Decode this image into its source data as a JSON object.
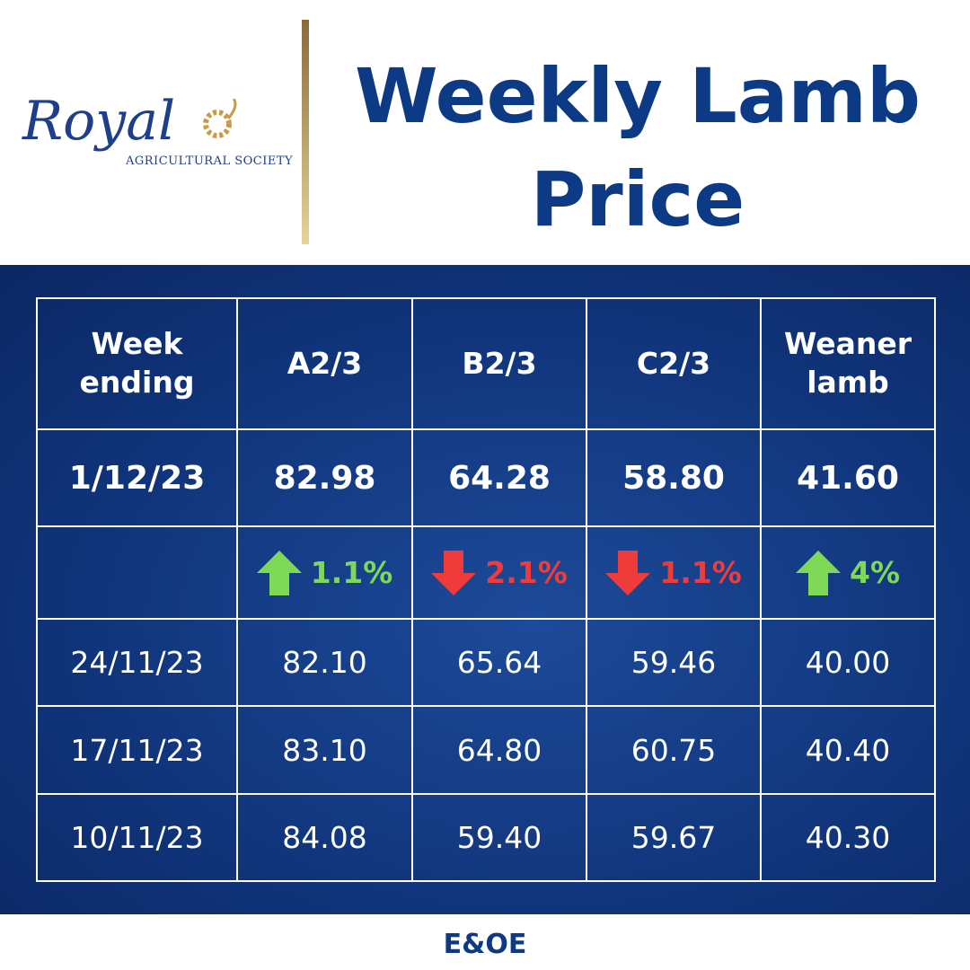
{
  "logo": {
    "name": "Royal",
    "subtitle": "AGRICULTURAL SOCIETY"
  },
  "header": {
    "title": "Weekly Lamb Price"
  },
  "table": {
    "columns": [
      "Week ending",
      "A2/3",
      "B2/3",
      "C2/3",
      "Weaner lamb"
    ],
    "latest": [
      "1/12/23",
      "82.98",
      "64.28",
      "58.80",
      "41.60"
    ],
    "changes": [
      {
        "direction": "up",
        "label": "1.1%"
      },
      {
        "direction": "down",
        "label": "2.1%"
      },
      {
        "direction": "down",
        "label": "1.1%"
      },
      {
        "direction": "up",
        "label": "4%"
      }
    ],
    "rows": [
      [
        "24/11/23",
        "82.10",
        "65.64",
        "59.46",
        "40.00"
      ],
      [
        "17/11/23",
        "83.10",
        "64.80",
        "60.75",
        "40.40"
      ],
      [
        "10/11/23",
        "84.08",
        "59.40",
        "59.67",
        "40.30"
      ]
    ]
  },
  "footer": {
    "note": "E&OE"
  }
}
